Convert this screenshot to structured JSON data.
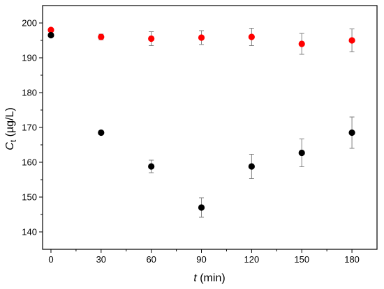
{
  "chart_data": {
    "type": "scatter",
    "xlabel_italic": "t",
    "xlabel_rest": " (min)",
    "ylabel_main": "C",
    "ylabel_sub": "t",
    "ylabel_rest": " (µg/L)",
    "xlim": [
      -5,
      195
    ],
    "ylim": [
      135,
      205
    ],
    "xticks": [
      0,
      30,
      60,
      90,
      120,
      150,
      180
    ],
    "yticks": [
      140,
      150,
      160,
      170,
      180,
      190,
      200
    ],
    "grid": false,
    "legend": "none",
    "series": [
      {
        "color": "#ff0000",
        "x": [
          0,
          30,
          60,
          90,
          120,
          150,
          180
        ],
        "y": [
          198.0,
          196.0,
          195.5,
          195.8,
          196.0,
          194.0,
          195.0
        ],
        "err": [
          0.5,
          0.8,
          2.0,
          2.0,
          2.5,
          3.0,
          3.3
        ]
      },
      {
        "color": "#000000",
        "x": [
          0,
          30,
          60,
          90,
          120,
          150,
          180
        ],
        "y": [
          196.5,
          168.5,
          158.8,
          147.0,
          158.8,
          162.7,
          168.5
        ],
        "err": [
          0.5,
          0.5,
          1.8,
          2.8,
          3.5,
          4.0,
          4.5
        ]
      }
    ]
  }
}
